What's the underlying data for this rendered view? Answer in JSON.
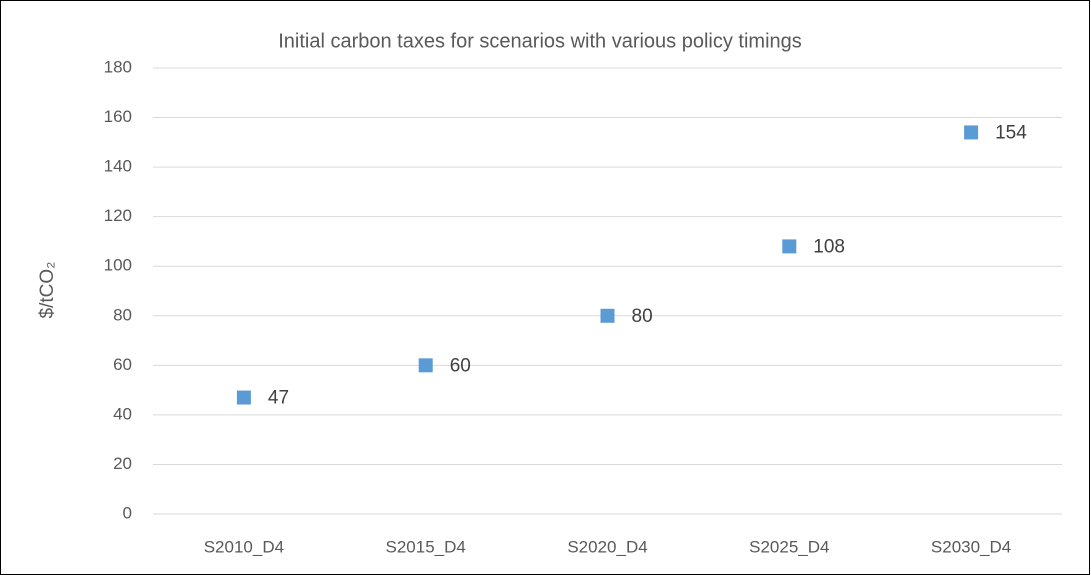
{
  "chart_data": {
    "type": "scatter",
    "title": "Initial carbon taxes for scenarios with various policy timings",
    "ylabel": "$/tCO₂",
    "categories": [
      "S2010_D4",
      "S2015_D4",
      "S2020_D4",
      "S2025_D4",
      "S2030_D4"
    ],
    "values": [
      47,
      60,
      80,
      108,
      154
    ],
    "color": "#5b9bd5",
    "ylim": [
      0,
      180
    ],
    "yticks": [
      0,
      20,
      40,
      60,
      80,
      100,
      120,
      140,
      160,
      180
    ],
    "grid": true
  }
}
